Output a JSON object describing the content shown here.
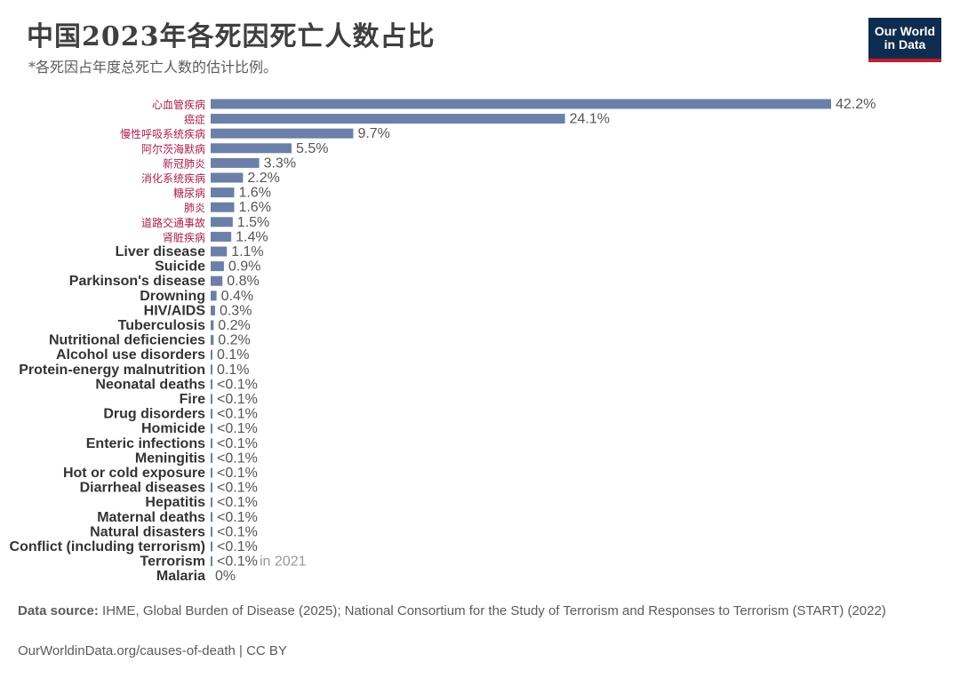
{
  "header": {
    "title": "中国2023年各死因死亡人数占比",
    "subtitle": "*各死因占年度总死亡人数的估计比例。",
    "logo_line1": "Our World",
    "logo_line2": "in Data"
  },
  "footer": {
    "source_prefix": "Data source:",
    "source_text": "IHME, Global Burden of Disease (2025); National Consortium for the Study of Terrorism and Responses to Terrorism (START) (2022)",
    "url": "OurWorldinData.org/causes-of-death | CC BY"
  },
  "colors": {
    "bar": "#6b7fa8",
    "highlight_label": "#a8204a"
  },
  "chart_data": {
    "type": "bar",
    "orientation": "horizontal",
    "title": "中国2023年各死因死亡人数占比",
    "subtitle": "*各死因占年度总死亡人数的估计比例。",
    "unit": "%",
    "xlim": [
      0,
      42.2
    ],
    "categories": [
      "心血管疾病",
      "癌症",
      "慢性呼吸系统疾病",
      "阿尔茨海默病",
      "新冠肺炎",
      "消化系统疾病",
      "糖尿病",
      "肺炎",
      "道路交通事故",
      "肾脏疾病",
      "Liver disease",
      "Suicide",
      "Parkinson's disease",
      "Drowning",
      "HIV/AIDS",
      "Tuberculosis",
      "Nutritional deficiencies",
      "Alcohol use disorders",
      "Protein-energy malnutrition",
      "Neonatal deaths",
      "Fire",
      "Drug disorders",
      "Homicide",
      "Enteric infections",
      "Meningitis",
      "Hot or cold exposure",
      "Diarrheal diseases",
      "Hepatitis",
      "Maternal deaths",
      "Natural disasters",
      "Conflict (including terrorism)",
      "Terrorism",
      "Malaria"
    ],
    "values": [
      42.2,
      24.1,
      9.7,
      5.5,
      3.3,
      2.2,
      1.6,
      1.6,
      1.5,
      1.4,
      1.1,
      0.9,
      0.8,
      0.4,
      0.3,
      0.2,
      0.2,
      0.1,
      0.1,
      0.05,
      0.05,
      0.05,
      0.05,
      0.05,
      0.05,
      0.05,
      0.05,
      0.05,
      0.05,
      0.05,
      0.05,
      0.05,
      0
    ],
    "value_labels": [
      "42.2%",
      "24.1%",
      "9.7%",
      "5.5%",
      "3.3%",
      "2.2%",
      "1.6%",
      "1.6%",
      "1.5%",
      "1.4%",
      "1.1%",
      "0.9%",
      "0.8%",
      "0.4%",
      "0.3%",
      "0.2%",
      "0.2%",
      "0.1%",
      "0.1%",
      "<0.1%",
      "<0.1%",
      "<0.1%",
      "<0.1%",
      "<0.1%",
      "<0.1%",
      "<0.1%",
      "<0.1%",
      "<0.1%",
      "<0.1%",
      "<0.1%",
      "<0.1%",
      "<0.1%",
      "0%"
    ],
    "notes": {
      "31": "in 2021"
    },
    "highlighted_count": 10
  }
}
